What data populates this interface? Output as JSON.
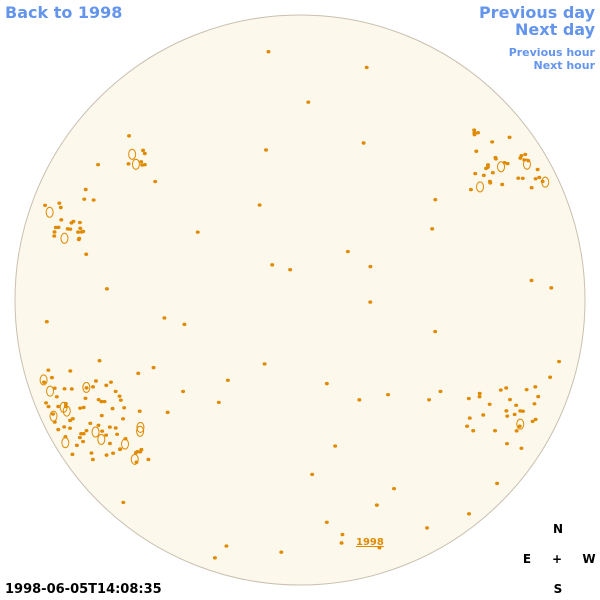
{
  "nav": {
    "back": "Back to 1998",
    "previous_day": "Previous day",
    "next_day": "Next day",
    "previous_hour": "Previous hour",
    "next_hour": "Next hour"
  },
  "image": {
    "year_link": "1998",
    "timestamp": "1998-06-05T14:08:35"
  },
  "compass": {
    "north": "N",
    "east": "E",
    "center": "+",
    "west": "W",
    "south": "S"
  }
}
